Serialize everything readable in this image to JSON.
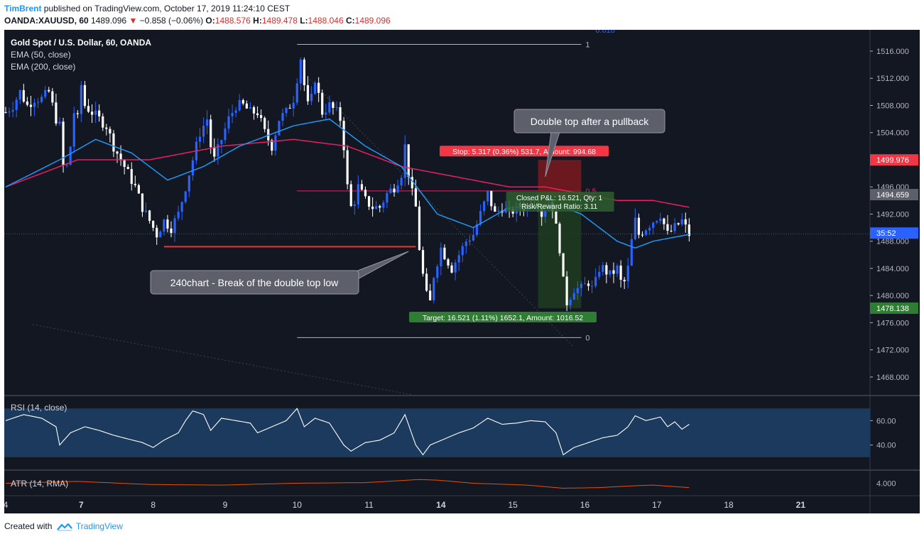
{
  "header": {
    "author": "TimBrent",
    "published": "published on TradingView.com, October 17, 2019 11:24:10 CEST",
    "symbol": "OANDA:XAUUSD, 60",
    "last": "1489.096",
    "change": "−0.858 (−0.06%)",
    "o_label": "O:",
    "o": "1488.576",
    "h_label": "H:",
    "h": "1489.478",
    "l_label": "L:",
    "l": "1488.046",
    "c_label": "C:",
    "c": "1489.096"
  },
  "footer": {
    "created_with": "Created with",
    "brand": "TradingView"
  },
  "colors": {
    "background": "#131722",
    "up": "#2962ff",
    "down": "#ffffff",
    "ema50": "#2196f3",
    "ema200": "#e91e63",
    "rsi": "#ffffff",
    "rsi_band": "#1c3a5e",
    "atr": "#e65100",
    "stop_zone": "#7b1a1f",
    "target_zone": "#1f3a1f",
    "support_line": "#e53935",
    "fib": "#b2b5be"
  },
  "chart_data": {
    "type": "candlestick",
    "legend": [
      "Gold Spot / U.S. Dollar, 60, OANDA",
      "EMA (50, close)",
      "EMA (200, close)"
    ],
    "ylim": [
      1465,
      1520
    ],
    "y_ticks": [
      "1516.000",
      "1512.000",
      "1508.000",
      "1504.000",
      "1500.000",
      "1496.000",
      "1492.000",
      "1488.000",
      "1484.000",
      "1480.000",
      "1476.000",
      "1472.000",
      "1468.000"
    ],
    "x_ticks": [
      {
        "label": "4",
        "bar": 0
      },
      {
        "label": "7",
        "bar": 21
      },
      {
        "label": "8",
        "bar": 41
      },
      {
        "label": "9",
        "bar": 61
      },
      {
        "label": "10",
        "bar": 81
      },
      {
        "label": "11",
        "bar": 101
      },
      {
        "label": "14",
        "bar": 121
      },
      {
        "label": "15",
        "bar": 141
      },
      {
        "label": "16",
        "bar": 161
      },
      {
        "label": "17",
        "bar": 181
      },
      {
        "label": "18",
        "bar": 201
      },
      {
        "label": "21",
        "bar": 221
      }
    ],
    "price_path": [
      [
        0,
        1507
      ],
      [
        2,
        1508
      ],
      [
        4,
        1510
      ],
      [
        6,
        1508
      ],
      [
        8,
        1509
      ],
      [
        10,
        1509
      ],
      [
        12,
        1510
      ],
      [
        14,
        1506
      ],
      [
        15,
        1505
      ],
      [
        16,
        1499
      ],
      [
        17,
        1499
      ],
      [
        18,
        1502
      ],
      [
        19,
        1507
      ],
      [
        20,
        1506
      ],
      [
        21,
        1511
      ],
      [
        22,
        1508
      ],
      [
        24,
        1507
      ],
      [
        26,
        1506
      ],
      [
        28,
        1505
      ],
      [
        30,
        1502
      ],
      [
        32,
        1500
      ],
      [
        34,
        1498
      ],
      [
        36,
        1496
      ],
      [
        38,
        1493
      ],
      [
        40,
        1491
      ],
      [
        41,
        1490
      ],
      [
        42,
        1489
      ],
      [
        43,
        1490
      ],
      [
        44,
        1491
      ],
      [
        46,
        1490
      ],
      [
        48,
        1492
      ],
      [
        50,
        1496
      ],
      [
        52,
        1500
      ],
      [
        54,
        1504
      ],
      [
        56,
        1506
      ],
      [
        57,
        1502
      ],
      [
        58,
        1500
      ],
      [
        60,
        1503
      ],
      [
        62,
        1506
      ],
      [
        64,
        1508
      ],
      [
        66,
        1508
      ],
      [
        68,
        1507
      ],
      [
        70,
        1507
      ],
      [
        72,
        1504
      ],
      [
        74,
        1502
      ],
      [
        76,
        1506
      ],
      [
        78,
        1507
      ],
      [
        80,
        1509
      ],
      [
        81,
        1512
      ],
      [
        82,
        1515
      ],
      [
        83,
        1511
      ],
      [
        84,
        1508
      ],
      [
        85,
        1509
      ],
      [
        86,
        1512
      ],
      [
        88,
        1507
      ],
      [
        90,
        1508
      ],
      [
        92,
        1507
      ],
      [
        93,
        1506
      ],
      [
        94,
        1502
      ],
      [
        95,
        1496
      ],
      [
        96,
        1493
      ],
      [
        97,
        1494
      ],
      [
        98,
        1496
      ],
      [
        100,
        1494
      ],
      [
        102,
        1493
      ],
      [
        104,
        1493
      ],
      [
        106,
        1495
      ],
      [
        108,
        1496
      ],
      [
        110,
        1498
      ],
      [
        111,
        1502
      ],
      [
        112,
        1498
      ],
      [
        113,
        1495
      ],
      [
        114,
        1493
      ],
      [
        115,
        1487
      ],
      [
        116,
        1483
      ],
      [
        117,
        1480
      ],
      [
        118,
        1479
      ],
      [
        119,
        1483
      ],
      [
        120,
        1485
      ],
      [
        121,
        1487
      ],
      [
        122,
        1486
      ],
      [
        124,
        1484
      ],
      [
        126,
        1486
      ],
      [
        128,
        1488
      ],
      [
        130,
        1489
      ],
      [
        132,
        1492
      ],
      [
        134,
        1495
      ],
      [
        136,
        1492
      ],
      [
        138,
        1493
      ],
      [
        140,
        1492
      ],
      [
        142,
        1493
      ],
      [
        144,
        1493
      ],
      [
        146,
        1494
      ],
      [
        148,
        1494
      ],
      [
        149,
        1492
      ],
      [
        150,
        1493
      ],
      [
        151,
        1494
      ],
      [
        152,
        1493
      ],
      [
        153,
        1490
      ],
      [
        154,
        1487
      ],
      [
        155,
        1482
      ],
      [
        156,
        1479
      ],
      [
        157,
        1480
      ],
      [
        158,
        1481
      ],
      [
        160,
        1481
      ],
      [
        162,
        1482
      ],
      [
        163,
        1481
      ],
      [
        164,
        1482
      ],
      [
        165,
        1484
      ],
      [
        166,
        1484
      ],
      [
        168,
        1483
      ],
      [
        170,
        1484
      ],
      [
        171,
        1482
      ],
      [
        172,
        1482
      ],
      [
        173,
        1484
      ],
      [
        174,
        1488
      ],
      [
        175,
        1491
      ],
      [
        176,
        1489
      ],
      [
        178,
        1490
      ],
      [
        180,
        1491
      ],
      [
        182,
        1492
      ],
      [
        184,
        1489
      ],
      [
        186,
        1490
      ],
      [
        188,
        1491
      ],
      [
        190,
        1489
      ]
    ],
    "ema50_path": [
      [
        0,
        1496
      ],
      [
        15,
        1500
      ],
      [
        25,
        1503
      ],
      [
        35,
        1501
      ],
      [
        45,
        1497
      ],
      [
        55,
        1499
      ],
      [
        65,
        1502
      ],
      [
        80,
        1505
      ],
      [
        90,
        1506
      ],
      [
        100,
        1502
      ],
      [
        110,
        1499
      ],
      [
        120,
        1492
      ],
      [
        130,
        1490
      ],
      [
        140,
        1493
      ],
      [
        150,
        1493
      ],
      [
        155,
        1493
      ],
      [
        160,
        1492
      ],
      [
        165,
        1490
      ],
      [
        170,
        1488
      ],
      [
        175,
        1487
      ],
      [
        180,
        1488
      ],
      [
        190,
        1489
      ]
    ],
    "ema200_path": [
      [
        0,
        1496
      ],
      [
        10,
        1498
      ],
      [
        20,
        1500
      ],
      [
        40,
        1500
      ],
      [
        60,
        1502
      ],
      [
        80,
        1503
      ],
      [
        95,
        1502
      ],
      [
        100,
        1501
      ],
      [
        110,
        1499
      ],
      [
        120,
        1498
      ],
      [
        130,
        1497
      ],
      [
        140,
        1496
      ],
      [
        150,
        1496
      ],
      [
        160,
        1495
      ],
      [
        170,
        1494
      ],
      [
        180,
        1494
      ],
      [
        190,
        1493
      ]
    ],
    "last_price": 1489.096,
    "price_labels": {
      "stop": "1499.976",
      "entry": "1494.659",
      "countdown": "35:52",
      "target": "1478.138"
    },
    "fib": {
      "levels": [
        {
          "label": "1",
          "price": 1517
        },
        {
          "label": "0.5",
          "price": 1495.4
        },
        {
          "label": "0",
          "price": 1473.8
        }
      ],
      "from_bar": 81,
      "to_bar": 160,
      "top_label": "0.618"
    },
    "support_line": {
      "price": 1487.2,
      "from_bar": 44,
      "to_bar": 114
    },
    "position": {
      "from_bar": 148,
      "to_bar": 160,
      "entry": 1494.659,
      "stop": 1499.976,
      "target": 1478.138,
      "stop_label": "Stop: 5.317 (0.36%) 531.7, Amount: 994.68",
      "target_label": "Target: 16.521 (1.11%) 1652.1, Amount: 1016.52",
      "info_line1": "Closed P&L: 16.521, Qty: 1",
      "info_line2": "Risk/Reward Ratio: 3.11"
    },
    "callouts": [
      {
        "text": "Double top after a pullback",
        "anchor_bar": 150,
        "anchor_price": 1497.5
      },
      {
        "text": "240chart - Break of the double top low",
        "anchor_bar": 112,
        "anchor_price": 1486.5
      }
    ],
    "rsi": {
      "label": "RSI (14, close)",
      "band": [
        30,
        70
      ],
      "y_ticks": [
        "60.00",
        "40.00"
      ],
      "ylim": [
        20,
        80
      ],
      "path": [
        [
          0,
          60
        ],
        [
          5,
          65
        ],
        [
          10,
          62
        ],
        [
          14,
          55
        ],
        [
          15,
          40
        ],
        [
          18,
          50
        ],
        [
          22,
          55
        ],
        [
          26,
          52
        ],
        [
          30,
          48
        ],
        [
          34,
          45
        ],
        [
          38,
          42
        ],
        [
          41,
          38
        ],
        [
          44,
          44
        ],
        [
          48,
          50
        ],
        [
          50,
          60
        ],
        [
          52,
          68
        ],
        [
          55,
          65
        ],
        [
          57,
          52
        ],
        [
          60,
          62
        ],
        [
          64,
          60
        ],
        [
          68,
          58
        ],
        [
          70,
          50
        ],
        [
          74,
          55
        ],
        [
          78,
          60
        ],
        [
          81,
          70
        ],
        [
          83,
          55
        ],
        [
          86,
          62
        ],
        [
          90,
          58
        ],
        [
          94,
          40
        ],
        [
          96,
          35
        ],
        [
          100,
          42
        ],
        [
          104,
          44
        ],
        [
          108,
          50
        ],
        [
          111,
          65
        ],
        [
          114,
          40
        ],
        [
          116,
          32
        ],
        [
          118,
          40
        ],
        [
          122,
          45
        ],
        [
          126,
          50
        ],
        [
          130,
          54
        ],
        [
          134,
          62
        ],
        [
          138,
          57
        ],
        [
          142,
          58
        ],
        [
          146,
          60
        ],
        [
          150,
          59
        ],
        [
          153,
          50
        ],
        [
          155,
          32
        ],
        [
          158,
          38
        ],
        [
          162,
          42
        ],
        [
          166,
          46
        ],
        [
          170,
          48
        ],
        [
          173,
          55
        ],
        [
          175,
          64
        ],
        [
          178,
          60
        ],
        [
          182,
          63
        ],
        [
          184,
          55
        ],
        [
          186,
          59
        ],
        [
          188,
          53
        ],
        [
          190,
          57
        ]
      ]
    },
    "atr": {
      "label": "ATR (14, RMA)",
      "y_ticks": [
        "4.000"
      ],
      "ylim": [
        2,
        6
      ],
      "path": [
        [
          0,
          4.0
        ],
        [
          20,
          4.3
        ],
        [
          40,
          3.8
        ],
        [
          60,
          3.7
        ],
        [
          80,
          4.0
        ],
        [
          100,
          4.1
        ],
        [
          115,
          4.6
        ],
        [
          120,
          4.5
        ],
        [
          130,
          4.0
        ],
        [
          145,
          3.7
        ],
        [
          155,
          3.2
        ],
        [
          165,
          3.3
        ],
        [
          175,
          3.6
        ],
        [
          180,
          3.7
        ],
        [
          190,
          3.3
        ]
      ]
    }
  }
}
